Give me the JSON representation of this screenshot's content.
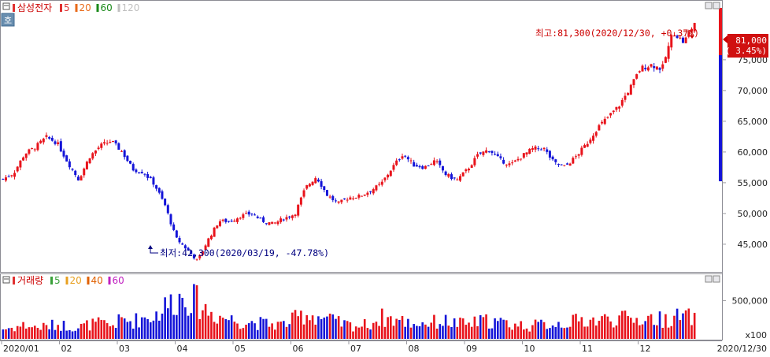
{
  "price_panel": {
    "title": "삼성전자",
    "ma_legend": [
      {
        "label": "5",
        "color": "#e03030"
      },
      {
        "label": "20",
        "color": "#e86a1a"
      },
      {
        "label": "60",
        "color": "#1a8a1a"
      },
      {
        "label": "120",
        "color": "#c0c0c0"
      }
    ],
    "hoga_button": "호",
    "high_annotation": "최고:81,300(2020/12/30, +0.37%)",
    "low_annotation": "최저:42,300(2020/03/19, -47.78%)",
    "last_price_label": "81,000",
    "last_change_label": "( 3.45%)"
  },
  "volume_panel": {
    "title": "거래량",
    "ma_legend": [
      {
        "label": "5",
        "color": "#3aa03a"
      },
      {
        "label": "20",
        "color": "#e8a020"
      },
      {
        "label": "40",
        "color": "#e06000"
      },
      {
        "label": "60",
        "color": "#c020c0"
      }
    ],
    "y_tick_labels": [
      "500,000"
    ],
    "unit_label": "x100"
  },
  "x_axis": {
    "month_labels": [
      "2020/01",
      "02",
      "03",
      "04",
      "05",
      "06",
      "07",
      "08",
      "09",
      "10",
      "11",
      "12"
    ],
    "end_label": "2020/12/30"
  },
  "colors": {
    "up": "#e8131b",
    "down": "#1414d8",
    "axis": "#9a9aa0",
    "annotation": "#cc0000",
    "low_annotation": "#000080"
  },
  "chart_data": [
    {
      "type": "candlestick",
      "title": "삼성전자",
      "y_ticks": [
        45000,
        50000,
        55000,
        60000,
        65000,
        70000,
        75000
      ],
      "ylim": [
        40500,
        83700
      ],
      "x": [
        "2020/01",
        "02",
        "03",
        "04",
        "05",
        "06",
        "07",
        "08",
        "09",
        "10",
        "11",
        "12",
        "2020/12/30"
      ],
      "close_trend": [
        55600,
        56600,
        59700,
        60800,
        62400,
        61500,
        58300,
        55500,
        59200,
        61000,
        61800,
        60100,
        57200,
        56700,
        54800,
        51300,
        46000,
        44200,
        42300,
        45800,
        48800,
        48700,
        49600,
        50000,
        48800,
        48300,
        49200,
        49900,
        54200,
        56000,
        53000,
        51600,
        52600,
        52800,
        53700,
        54800,
        57400,
        59700,
        57900,
        57500,
        58600,
        56300,
        55400,
        57200,
        59600,
        60400,
        58700,
        57900,
        59300,
        60500,
        60700,
        58200,
        57600,
        59200,
        61300,
        63900,
        65700,
        67500,
        70300,
        73600,
        74200,
        73500,
        79600,
        77800,
        81000
      ],
      "highest": {
        "value": 81300,
        "date": "2020/12/30",
        "change": "+0.37%"
      },
      "lowest": {
        "value": 42300,
        "date": "2020/03/19",
        "change": "-47.78%"
      },
      "last": {
        "value": 81000,
        "change": "3.45%"
      }
    },
    {
      "type": "bar",
      "title": "거래량",
      "unit": "x100",
      "y_ticks": [
        500000
      ],
      "ylim": [
        0,
        700000
      ],
      "x": [
        "2020/01",
        "02",
        "03",
        "04",
        "05",
        "06",
        "07",
        "08",
        "09",
        "10",
        "11",
        "12",
        "2020/12/30"
      ],
      "volume_trend": [
        130000,
        150000,
        180000,
        150000,
        160000,
        190000,
        170000,
        150000,
        190000,
        200000,
        170000,
        250000,
        230000,
        280000,
        300000,
        420000,
        520000,
        560000,
        480000,
        360000,
        300000,
        260000,
        230000,
        220000,
        200000,
        190000,
        190000,
        260000,
        330000,
        300000,
        260000,
        210000,
        180000,
        170000,
        200000,
        280000,
        260000,
        230000,
        200000,
        210000,
        220000,
        230000,
        200000,
        190000,
        220000,
        240000,
        210000,
        190000,
        180000,
        170000,
        190000,
        200000,
        210000,
        230000,
        250000,
        240000,
        260000,
        270000,
        250000,
        260000,
        270000,
        250000,
        280000,
        290000,
        270000
      ]
    }
  ]
}
